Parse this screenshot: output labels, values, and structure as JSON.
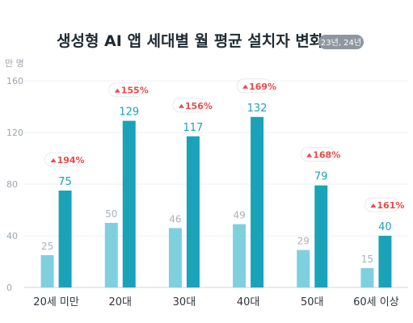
{
  "chart_data": {
    "type": "bar",
    "title": "생성형 AI 앱 세대별 월 평균 설치자 변화",
    "badge": "23년, 24년",
    "unit": "만 명",
    "categories": [
      "20세 미만",
      "20대",
      "30대",
      "40대",
      "50대",
      "60세 이상"
    ],
    "series": [
      {
        "values": [
          25,
          50,
          46,
          49,
          29,
          15
        ]
      },
      {
        "values": [
          75,
          129,
          117,
          132,
          79,
          40
        ]
      }
    ],
    "growth_labels": [
      "194%",
      "155%",
      "156%",
      "169%",
      "168%",
      "161%"
    ],
    "yticks": [
      0,
      40,
      80,
      120,
      160
    ],
    "ylim": [
      0,
      160
    ],
    "grid": true,
    "colors": {
      "series_light": "#7fd0df",
      "series_dark": "#1aa3b8",
      "growth": "#e84a4a",
      "badge_bg": "#8e979f"
    }
  }
}
